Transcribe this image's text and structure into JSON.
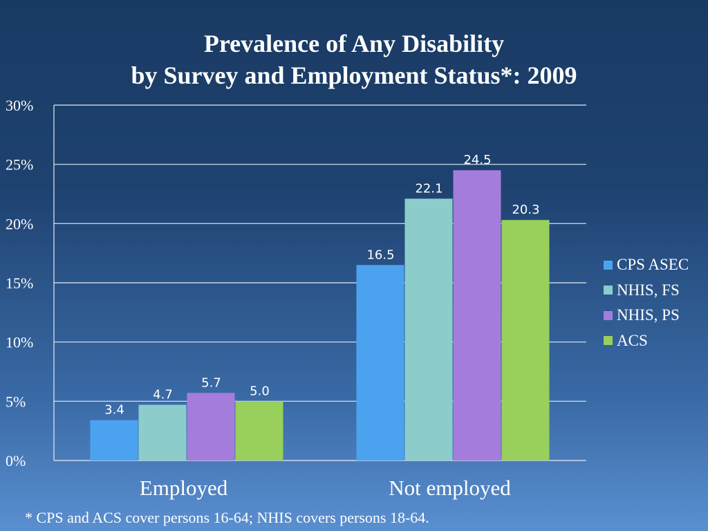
{
  "title": {
    "line1": "Prevalence of Any Disability",
    "line2": "by Survey and Employment Status*: 2009"
  },
  "footnote": "* CPS and ACS cover persons 16-64; NHIS covers persons 18-64.",
  "chart_data": {
    "type": "bar",
    "title": "Prevalence of Any Disability by Survey and Employment Status*: 2009",
    "xlabel": "",
    "ylabel": "",
    "categories": [
      "Employed",
      "Not employed"
    ],
    "ylim": [
      0,
      30
    ],
    "yticks": [
      0,
      5,
      10,
      15,
      20,
      25,
      30
    ],
    "ytick_labels": [
      "0%",
      "5%",
      "10%",
      "15%",
      "20%",
      "25%",
      "30%"
    ],
    "grid": true,
    "legend_position": "right",
    "series": [
      {
        "name": "CPS ASEC",
        "color": "#4ba3f0",
        "values": [
          3.4,
          16.5
        ],
        "labels": [
          "3.4",
          "16.5"
        ]
      },
      {
        "name": "NHIS, FS",
        "color": "#8ccdcc",
        "values": [
          4.7,
          22.1
        ],
        "labels": [
          "4.7",
          "22.1"
        ]
      },
      {
        "name": "NHIS, PS",
        "color": "#a47ddc",
        "values": [
          5.7,
          24.5
        ],
        "labels": [
          "5.7",
          "24.5"
        ]
      },
      {
        "name": "ACS",
        "color": "#98d05b",
        "values": [
          5.0,
          20.3
        ],
        "labels": [
          "5.0",
          "20.3"
        ]
      }
    ]
  }
}
